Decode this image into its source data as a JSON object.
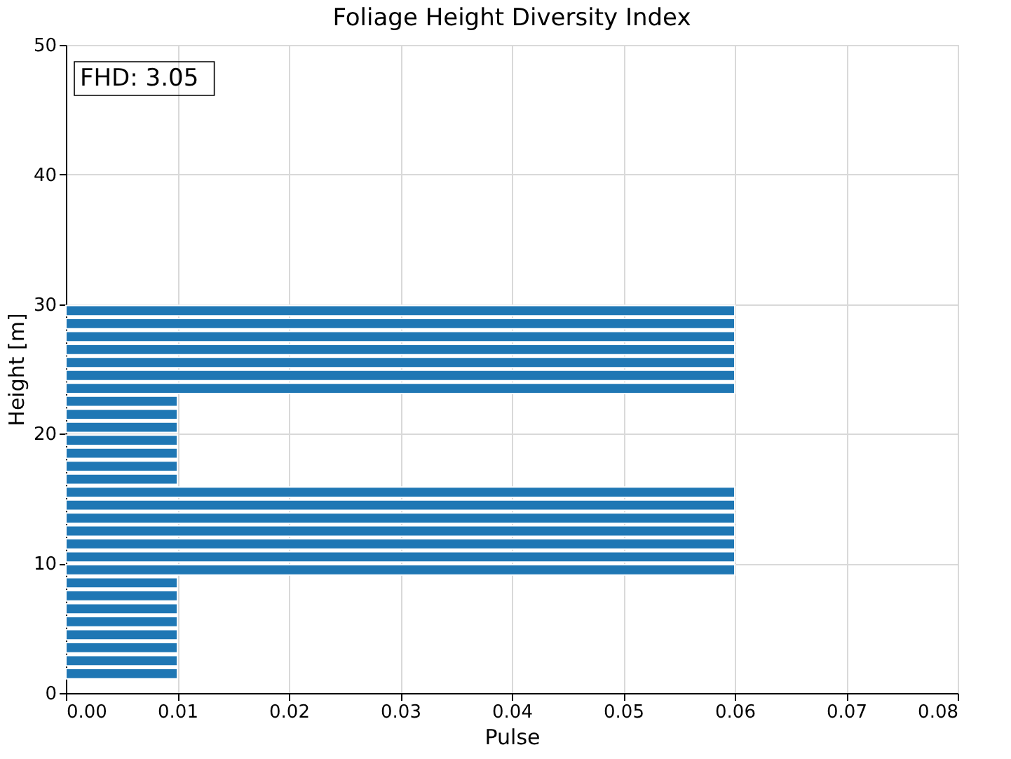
{
  "chart_data": {
    "type": "bar",
    "orientation": "horizontal",
    "title": "Foliage Height Diversity Index",
    "xlabel": "Pulse",
    "ylabel": "Height [m]",
    "annotations": [
      "FHD: 3.05"
    ],
    "x": [
      1.5,
      2.5,
      3.5,
      4.5,
      5.5,
      6.5,
      7.5,
      8.5,
      9.5,
      10.5,
      11.5,
      12.5,
      13.5,
      14.5,
      15.5,
      16.5,
      17.5,
      18.5,
      19.5,
      20.5,
      21.5,
      22.5,
      23.5,
      24.5,
      25.5,
      26.5,
      27.5,
      28.5,
      29.5
    ],
    "values": [
      0.01,
      0.01,
      0.01,
      0.01,
      0.01,
      0.01,
      0.01,
      0.01,
      0.06,
      0.06,
      0.06,
      0.06,
      0.06,
      0.06,
      0.06,
      0.01,
      0.01,
      0.01,
      0.01,
      0.01,
      0.01,
      0.01,
      0.06,
      0.06,
      0.06,
      0.06,
      0.06,
      0.06,
      0.06
    ],
    "color": "#1f77b4",
    "xlim": [
      0,
      0.08
    ],
    "xticks": [
      {
        "value": 0,
        "label": "0.00"
      },
      {
        "value": 0.01,
        "label": "0.01"
      },
      {
        "value": 0.02,
        "label": "0.02"
      },
      {
        "value": 0.03,
        "label": "0.03"
      },
      {
        "value": 0.04,
        "label": "0.04"
      },
      {
        "value": 0.05,
        "label": "0.05"
      },
      {
        "value": 0.06,
        "label": "0.06"
      },
      {
        "value": 0.07,
        "label": "0.07"
      },
      {
        "value": 0.08,
        "label": "0.08"
      }
    ],
    "ylim": [
      0,
      50
    ],
    "yticks": [
      0,
      10,
      20,
      30,
      40,
      50
    ],
    "grid": true
  }
}
